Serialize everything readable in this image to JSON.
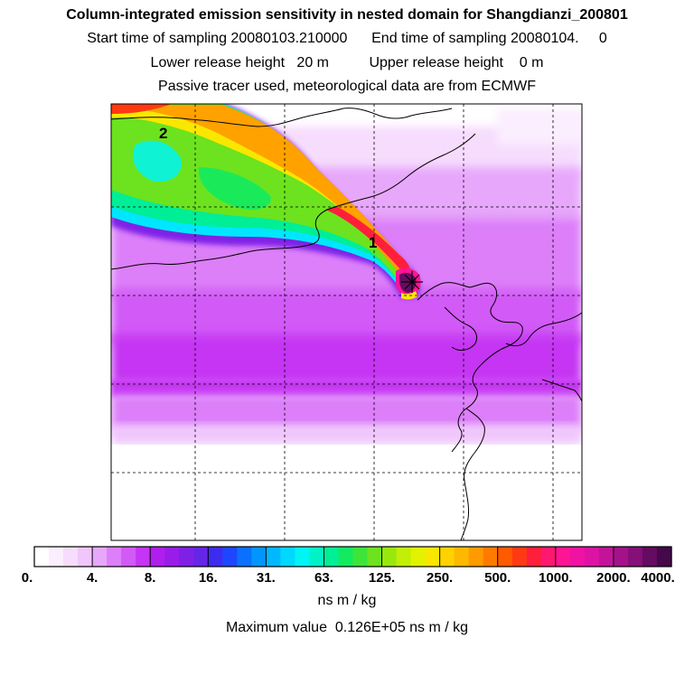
{
  "header": {
    "title": "Column-integrated emission sensitivity in nested domain for Shangdianzi_200801",
    "line2": "Start time of sampling 20080103.210000      End time of sampling 20080104.     0",
    "line3": "Lower release height   20 m          Upper release height    0 m",
    "line4": "Passive tracer used, meteorological data are from ECMWF"
  },
  "chart_data": {
    "type": "heatmap",
    "title": "Column-integrated emission sensitivity in nested domain for Shangdianzi_200801",
    "unit": "ns m / kg",
    "max_value_text": "Maximum value  0.126E+05 ns m / kg",
    "colorbar": {
      "tick_labels": [
        "0.",
        "4.",
        "8.",
        "16.",
        "31.",
        "63.",
        "125.",
        "250.",
        "500.",
        "1000.",
        "2000.",
        "4000."
      ],
      "colors": [
        "#ffffff",
        "#fbeefe",
        "#f6dcfd",
        "#f0c6fc",
        "#e7a8fb",
        "#dc7ff9",
        "#d25af7",
        "#c535f3",
        "#b01eee",
        "#9a1ce9",
        "#7f20e6",
        "#6626e8",
        "#3d2cf0",
        "#1f46ff",
        "#0a70ff",
        "#0395ff",
        "#00b8ff",
        "#00d8ff",
        "#00f4f4",
        "#00f2c6",
        "#00ee96",
        "#12ea60",
        "#3ee43a",
        "#6ce31e",
        "#98e80e",
        "#c2ee08",
        "#e2f200",
        "#fae700",
        "#ffd200",
        "#ffb800",
        "#ff9a00",
        "#ff7b00",
        "#ff5a00",
        "#ff3a12",
        "#ff1f3a",
        "#ff1870",
        "#ff1493",
        "#f012a2",
        "#dd13a6",
        "#c31399",
        "#a5118a",
        "#860f79",
        "#650b61",
        "#45084a"
      ]
    },
    "labels": [
      "1",
      "2"
    ],
    "grid": "dashed",
    "maximum": 12600
  }
}
